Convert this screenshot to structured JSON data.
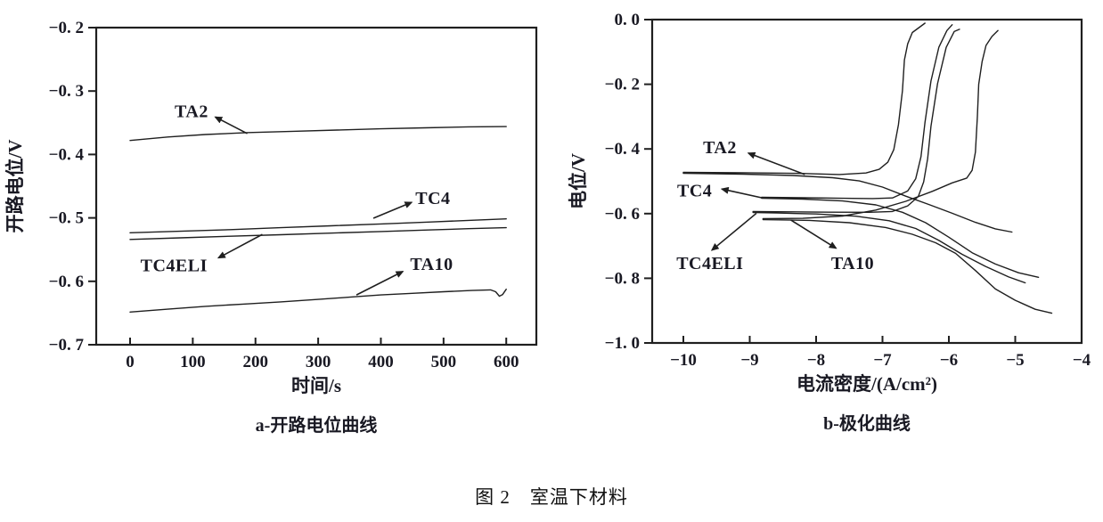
{
  "figure": {
    "caption": "图 2　室温下材料",
    "ink_color": "#1f1f1f",
    "text_color": "#191923",
    "background": "#ffffff"
  },
  "chart_data": [
    {
      "id": "a",
      "type": "line",
      "caption": "a-开路电位曲线",
      "xlabel": "时间/s",
      "ylabel": "开路电位/V",
      "xlim": [
        -54,
        648
      ],
      "ylim": [
        -0.2,
        -0.7
      ],
      "grid": false,
      "legend": "none (inline arrow annotations)",
      "xticks": [
        0,
        100,
        200,
        300,
        400,
        500,
        600
      ],
      "xtick_labels": [
        "0",
        "100",
        "200",
        "300",
        "400",
        "500",
        "600"
      ],
      "yticks": [
        -0.2,
        -0.3,
        -0.4,
        -0.5,
        -0.6,
        -0.7
      ],
      "ytick_labels": [
        "−0. 2",
        "−0. 3",
        "−0. 4",
        "−0. 5",
        "−0. 6",
        "−0. 7"
      ],
      "series": [
        {
          "name": "TA2",
          "points": [
            [
              0,
              -0.378
            ],
            [
              60,
              -0.3725
            ],
            [
              120,
              -0.3685
            ],
            [
              190,
              -0.3655
            ],
            [
              260,
              -0.3635
            ],
            [
              330,
              -0.3615
            ],
            [
              400,
              -0.3595
            ],
            [
              470,
              -0.358
            ],
            [
              540,
              -0.3565
            ],
            [
              600,
              -0.356
            ]
          ]
        },
        {
          "name": "TC4",
          "points": [
            [
              0,
              -0.5235
            ],
            [
              80,
              -0.521
            ],
            [
              160,
              -0.5185
            ],
            [
              240,
              -0.5155
            ],
            [
              320,
              -0.5125
            ],
            [
              400,
              -0.5095
            ],
            [
              480,
              -0.5065
            ],
            [
              540,
              -0.504
            ],
            [
              600,
              -0.5015
            ]
          ]
        },
        {
          "name": "TC4ELI",
          "points": [
            [
              0,
              -0.534
            ],
            [
              80,
              -0.5315
            ],
            [
              160,
              -0.529
            ],
            [
              240,
              -0.5265
            ],
            [
              320,
              -0.524
            ],
            [
              400,
              -0.5215
            ],
            [
              480,
              -0.519
            ],
            [
              540,
              -0.517
            ],
            [
              600,
              -0.5155
            ]
          ]
        },
        {
          "name": "TA10",
          "points": [
            [
              0,
              -0.6485
            ],
            [
              60,
              -0.644
            ],
            [
              120,
              -0.6395
            ],
            [
              180,
              -0.636
            ],
            [
              240,
              -0.6325
            ],
            [
              300,
              -0.6285
            ],
            [
              350,
              -0.625
            ],
            [
              400,
              -0.6215
            ],
            [
              450,
              -0.619
            ],
            [
              500,
              -0.6165
            ],
            [
              545,
              -0.6145
            ],
            [
              575,
              -0.6135
            ],
            [
              583,
              -0.6165
            ],
            [
              589,
              -0.6235
            ],
            [
              594,
              -0.621
            ],
            [
              600,
              -0.6125
            ]
          ]
        }
      ],
      "annotations": [
        {
          "label": "TA2",
          "text_at": [
            98,
            -0.331
          ],
          "arrow_from": [
            187,
            -0.367
          ],
          "arrow_to": [
            136,
            -0.341
          ]
        },
        {
          "label": "TC4",
          "text_at": [
            483,
            -0.468
          ],
          "arrow_from": [
            388,
            -0.5005
          ],
          "arrow_to": [
            449,
            -0.4755
          ]
        },
        {
          "label": "TC4ELI",
          "text_at": [
            70,
            -0.574
          ],
          "arrow_from": [
            211,
            -0.526
          ],
          "arrow_to": [
            141,
            -0.563
          ]
        },
        {
          "label": "TA10",
          "text_at": [
            481,
            -0.572
          ],
          "arrow_from": [
            361,
            -0.6215
          ],
          "arrow_to": [
            435,
            -0.5845
          ]
        }
      ]
    },
    {
      "id": "b",
      "type": "line",
      "caption": "b-极化曲线",
      "xlabel": "电流密度/(A/cm²)",
      "ylabel": "电位/V",
      "xlim": [
        -10.47,
        -4.0
      ],
      "ylim": [
        0.0,
        -1.0
      ],
      "grid": false,
      "legend": "none (inline arrow annotations)",
      "xticks": [
        -10,
        -9,
        -8,
        -7,
        -6,
        -5,
        -4
      ],
      "xtick_labels": [
        "−10",
        "−9",
        "−8",
        "−7",
        "−6",
        "−5",
        "−4"
      ],
      "yticks": [
        0.0,
        -0.2,
        -0.4,
        -0.6,
        -0.8,
        -1.0
      ],
      "ytick_labels": [
        "0. 0",
        "−0. 2",
        "−0. 4",
        "−0. 6",
        "−0. 8",
        "−1. 0"
      ],
      "series": [
        {
          "name": "TA2",
          "points": [
            [
              -5.05,
              -0.657
            ],
            [
              -5.3,
              -0.647
            ],
            [
              -5.6,
              -0.627
            ],
            [
              -5.95,
              -0.599
            ],
            [
              -6.3,
              -0.572
            ],
            [
              -6.65,
              -0.546
            ],
            [
              -7.0,
              -0.518
            ],
            [
              -7.35,
              -0.499
            ],
            [
              -7.75,
              -0.489
            ],
            [
              -8.35,
              -0.482
            ],
            [
              -9.1,
              -0.478
            ],
            [
              -10.0,
              -0.4755
            ],
            [
              -10.0,
              -0.4725
            ],
            [
              -9.1,
              -0.4735
            ],
            [
              -8.3,
              -0.4755
            ],
            [
              -7.65,
              -0.479
            ],
            [
              -7.25,
              -0.4745
            ],
            [
              -7.05,
              -0.463
            ],
            [
              -6.92,
              -0.441
            ],
            [
              -6.83,
              -0.402
            ],
            [
              -6.76,
              -0.325
            ],
            [
              -6.7,
              -0.22
            ],
            [
              -6.67,
              -0.125
            ],
            [
              -6.62,
              -0.075
            ],
            [
              -6.55,
              -0.04
            ],
            [
              -6.36,
              -0.011
            ]
          ]
        },
        {
          "name": "TC4",
          "points": [
            [
              -4.65,
              -0.797
            ],
            [
              -4.95,
              -0.783
            ],
            [
              -5.3,
              -0.756
            ],
            [
              -5.65,
              -0.721
            ],
            [
              -6.0,
              -0.673
            ],
            [
              -6.35,
              -0.628
            ],
            [
              -6.7,
              -0.596
            ],
            [
              -7.1,
              -0.573
            ],
            [
              -7.6,
              -0.561
            ],
            [
              -8.2,
              -0.555
            ],
            [
              -8.82,
              -0.5525
            ],
            [
              -8.82,
              -0.5495
            ],
            [
              -8.2,
              -0.551
            ],
            [
              -7.6,
              -0.5525
            ],
            [
              -7.15,
              -0.5535
            ],
            [
              -6.85,
              -0.5515
            ],
            [
              -6.62,
              -0.53
            ],
            [
              -6.5,
              -0.492
            ],
            [
              -6.42,
              -0.424
            ],
            [
              -6.36,
              -0.318
            ],
            [
              -6.27,
              -0.19
            ],
            [
              -6.15,
              -0.085
            ],
            [
              -6.03,
              -0.034
            ],
            [
              -5.95,
              -0.016
            ]
          ]
        },
        {
          "name": "TC4ELI",
          "points": [
            [
              -4.85,
              -0.814
            ],
            [
              -5.1,
              -0.796
            ],
            [
              -5.45,
              -0.763
            ],
            [
              -5.8,
              -0.726
            ],
            [
              -6.15,
              -0.683
            ],
            [
              -6.5,
              -0.646
            ],
            [
              -6.9,
              -0.622
            ],
            [
              -7.4,
              -0.608
            ],
            [
              -8.0,
              -0.601
            ],
            [
              -8.6,
              -0.598
            ],
            [
              -8.95,
              -0.5965
            ],
            [
              -8.95,
              -0.5935
            ],
            [
              -8.4,
              -0.5945
            ],
            [
              -7.8,
              -0.5955
            ],
            [
              -7.2,
              -0.596
            ],
            [
              -6.85,
              -0.5935
            ],
            [
              -6.62,
              -0.576
            ],
            [
              -6.46,
              -0.547
            ],
            [
              -6.38,
              -0.502
            ],
            [
              -6.32,
              -0.43
            ],
            [
              -6.27,
              -0.33
            ],
            [
              -6.17,
              -0.198
            ],
            [
              -6.04,
              -0.086
            ],
            [
              -5.92,
              -0.037
            ],
            [
              -5.84,
              -0.03
            ]
          ]
        },
        {
          "name": "TA10",
          "points": [
            [
              -4.45,
              -0.908
            ],
            [
              -4.7,
              -0.896
            ],
            [
              -5.0,
              -0.868
            ],
            [
              -5.3,
              -0.833
            ],
            [
              -5.6,
              -0.776
            ],
            [
              -5.9,
              -0.723
            ],
            [
              -6.2,
              -0.69
            ],
            [
              -6.55,
              -0.664
            ],
            [
              -6.95,
              -0.643
            ],
            [
              -7.5,
              -0.628
            ],
            [
              -8.1,
              -0.621
            ],
            [
              -8.8,
              -0.6185
            ],
            [
              -8.8,
              -0.6155
            ],
            [
              -8.2,
              -0.6145
            ],
            [
              -7.6,
              -0.6075
            ],
            [
              -7.1,
              -0.589
            ],
            [
              -6.65,
              -0.562
            ],
            [
              -6.25,
              -0.531
            ],
            [
              -5.95,
              -0.505
            ],
            [
              -5.73,
              -0.49
            ],
            [
              -5.65,
              -0.466
            ],
            [
              -5.6,
              -0.41
            ],
            [
              -5.57,
              -0.3
            ],
            [
              -5.55,
              -0.2
            ],
            [
              -5.5,
              -0.13
            ],
            [
              -5.44,
              -0.08
            ],
            [
              -5.35,
              -0.052
            ],
            [
              -5.26,
              -0.034
            ]
          ]
        }
      ],
      "annotations": [
        {
          "label": "TA2",
          "text_at": [
            -9.45,
            -0.394
          ],
          "arrow_from": [
            -8.17,
            -0.479
          ],
          "arrow_to": [
            -9.02,
            -0.413
          ]
        },
        {
          "label": "TC4",
          "text_at": [
            -9.83,
            -0.528
          ],
          "arrow_from": [
            -8.82,
            -0.551
          ],
          "arrow_to": [
            -9.42,
            -0.524
          ]
        },
        {
          "label": "TC4ELI",
          "text_at": [
            -9.6,
            -0.752
          ],
          "arrow_from": [
            -8.9,
            -0.599
          ],
          "arrow_to": [
            -9.57,
            -0.713
          ]
        },
        {
          "label": "TA10",
          "text_at": [
            -7.45,
            -0.752
          ],
          "arrow_from": [
            -8.38,
            -0.62
          ],
          "arrow_to": [
            -7.7,
            -0.707
          ]
        }
      ]
    }
  ]
}
